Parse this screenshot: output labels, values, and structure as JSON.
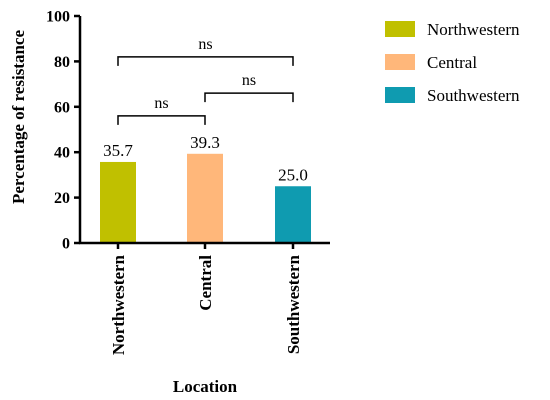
{
  "chart_data": {
    "type": "bar",
    "categories": [
      "Northwestern",
      "Central",
      "Southwestern"
    ],
    "values": [
      35.7,
      39.3,
      25.0
    ],
    "data_labels": [
      "35.7",
      "39.3",
      "25.0"
    ],
    "colors": [
      "#c0c000",
      "#ffb77a",
      "#0f9bb0"
    ],
    "xlabel": "Location",
    "ylabel": "Percentage of resistance",
    "ylim": [
      0,
      100
    ],
    "yticks": [
      0,
      20,
      40,
      60,
      80,
      100
    ],
    "ytick_labels": [
      "0",
      "20",
      "40",
      "60",
      "80",
      "100"
    ],
    "grid": false,
    "legend": {
      "placement": "right",
      "entries": [
        "Northwestern",
        "Central",
        "Southwestern"
      ]
    },
    "comparisons": [
      {
        "from": 0,
        "to": 1,
        "label": "ns",
        "y": 56
      },
      {
        "from": 1,
        "to": 2,
        "label": "ns",
        "y": 66
      },
      {
        "from": 0,
        "to": 2,
        "label": "ns",
        "y": 82
      }
    ]
  }
}
